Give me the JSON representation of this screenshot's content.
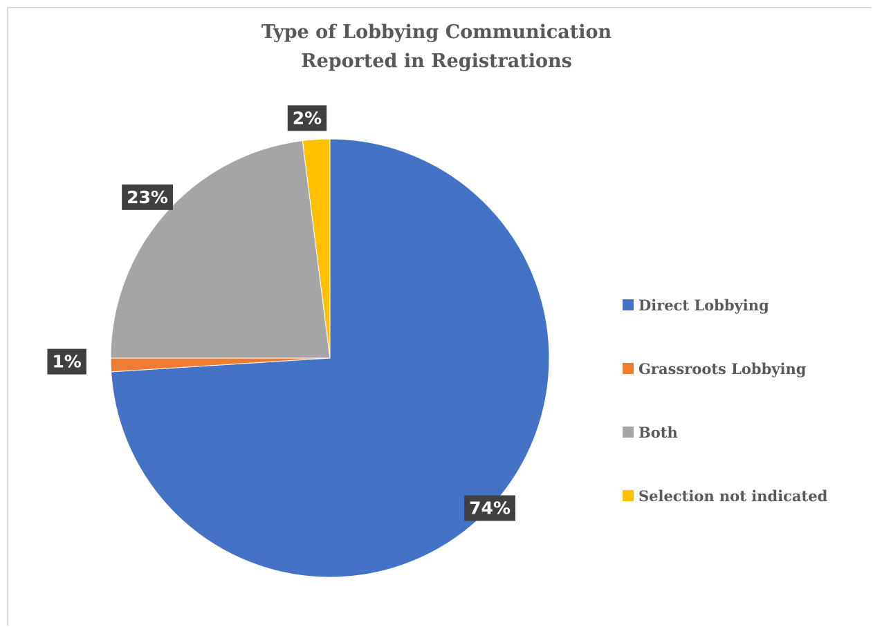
{
  "chart_data": {
    "type": "pie",
    "title": "Type of Lobbying Communication Reported in Registrations",
    "title_lines": [
      "Type of Lobbying Communication",
      "Reported in Registrations"
    ],
    "labels": [
      "Direct Lobbying",
      "Grassroots Lobbying",
      "Both",
      "Selection not indicated"
    ],
    "values": [
      74,
      1,
      23,
      2
    ],
    "data_labels": [
      "74%",
      "1%",
      "23%",
      "2%"
    ],
    "colors": [
      "#4472c4",
      "#ed7d31",
      "#a5a5a5",
      "#ffc000"
    ],
    "start_angle_deg": 0,
    "direction": "clockwise",
    "legend_position": "right"
  }
}
